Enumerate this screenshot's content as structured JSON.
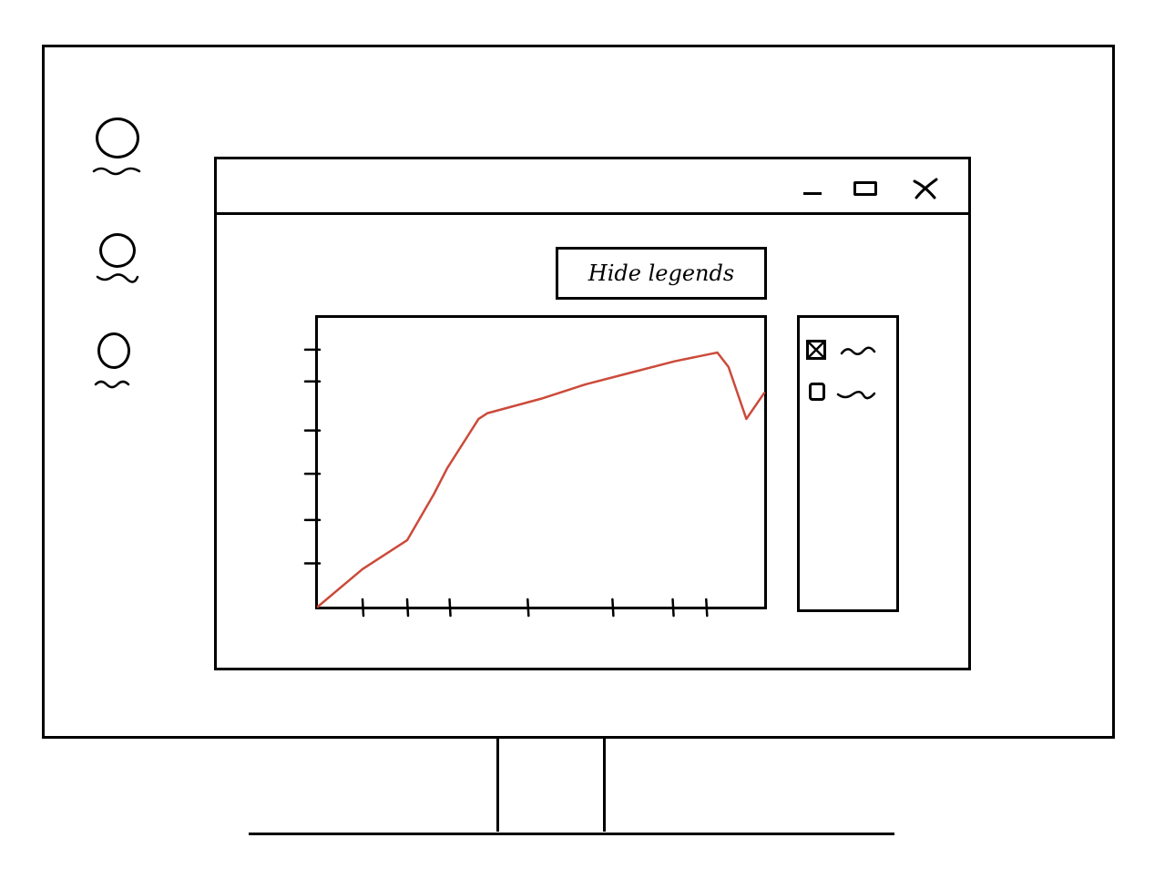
{
  "desktop": {
    "icons": [
      {
        "label": ""
      },
      {
        "label": ""
      },
      {
        "label": ""
      }
    ]
  },
  "window": {
    "controls": {
      "minimize": "minimize",
      "maximize": "maximize",
      "close": "close"
    },
    "hide_legends_label": "Hide legends"
  },
  "legend": {
    "items": [
      {
        "label": "",
        "checked": true
      },
      {
        "label": "",
        "checked": false
      }
    ]
  },
  "chart_data": {
    "type": "line",
    "title": "",
    "xlabel": "",
    "ylabel": "",
    "xlim": [
      0,
      100
    ],
    "ylim": [
      0,
      100
    ],
    "x_ticks": [
      10,
      20,
      29.5,
      47,
      66,
      79.5,
      87
    ],
    "y_ticks": [
      15,
      30,
      46,
      61,
      78,
      89
    ],
    "series": [
      {
        "name": "",
        "color": "#cc4a3a",
        "x": [
          0,
          10,
          20,
          26,
          29,
          36,
          38,
          50,
          60,
          70,
          80,
          89.5,
          92,
          96,
          100
        ],
        "y": [
          0,
          13,
          23,
          39,
          48,
          65,
          67,
          72,
          77,
          81,
          85,
          88,
          83,
          65,
          74
        ]
      }
    ]
  },
  "colors": {
    "line": "#cc4a3a",
    "stroke": "#000000",
    "background": "#ffffff"
  }
}
